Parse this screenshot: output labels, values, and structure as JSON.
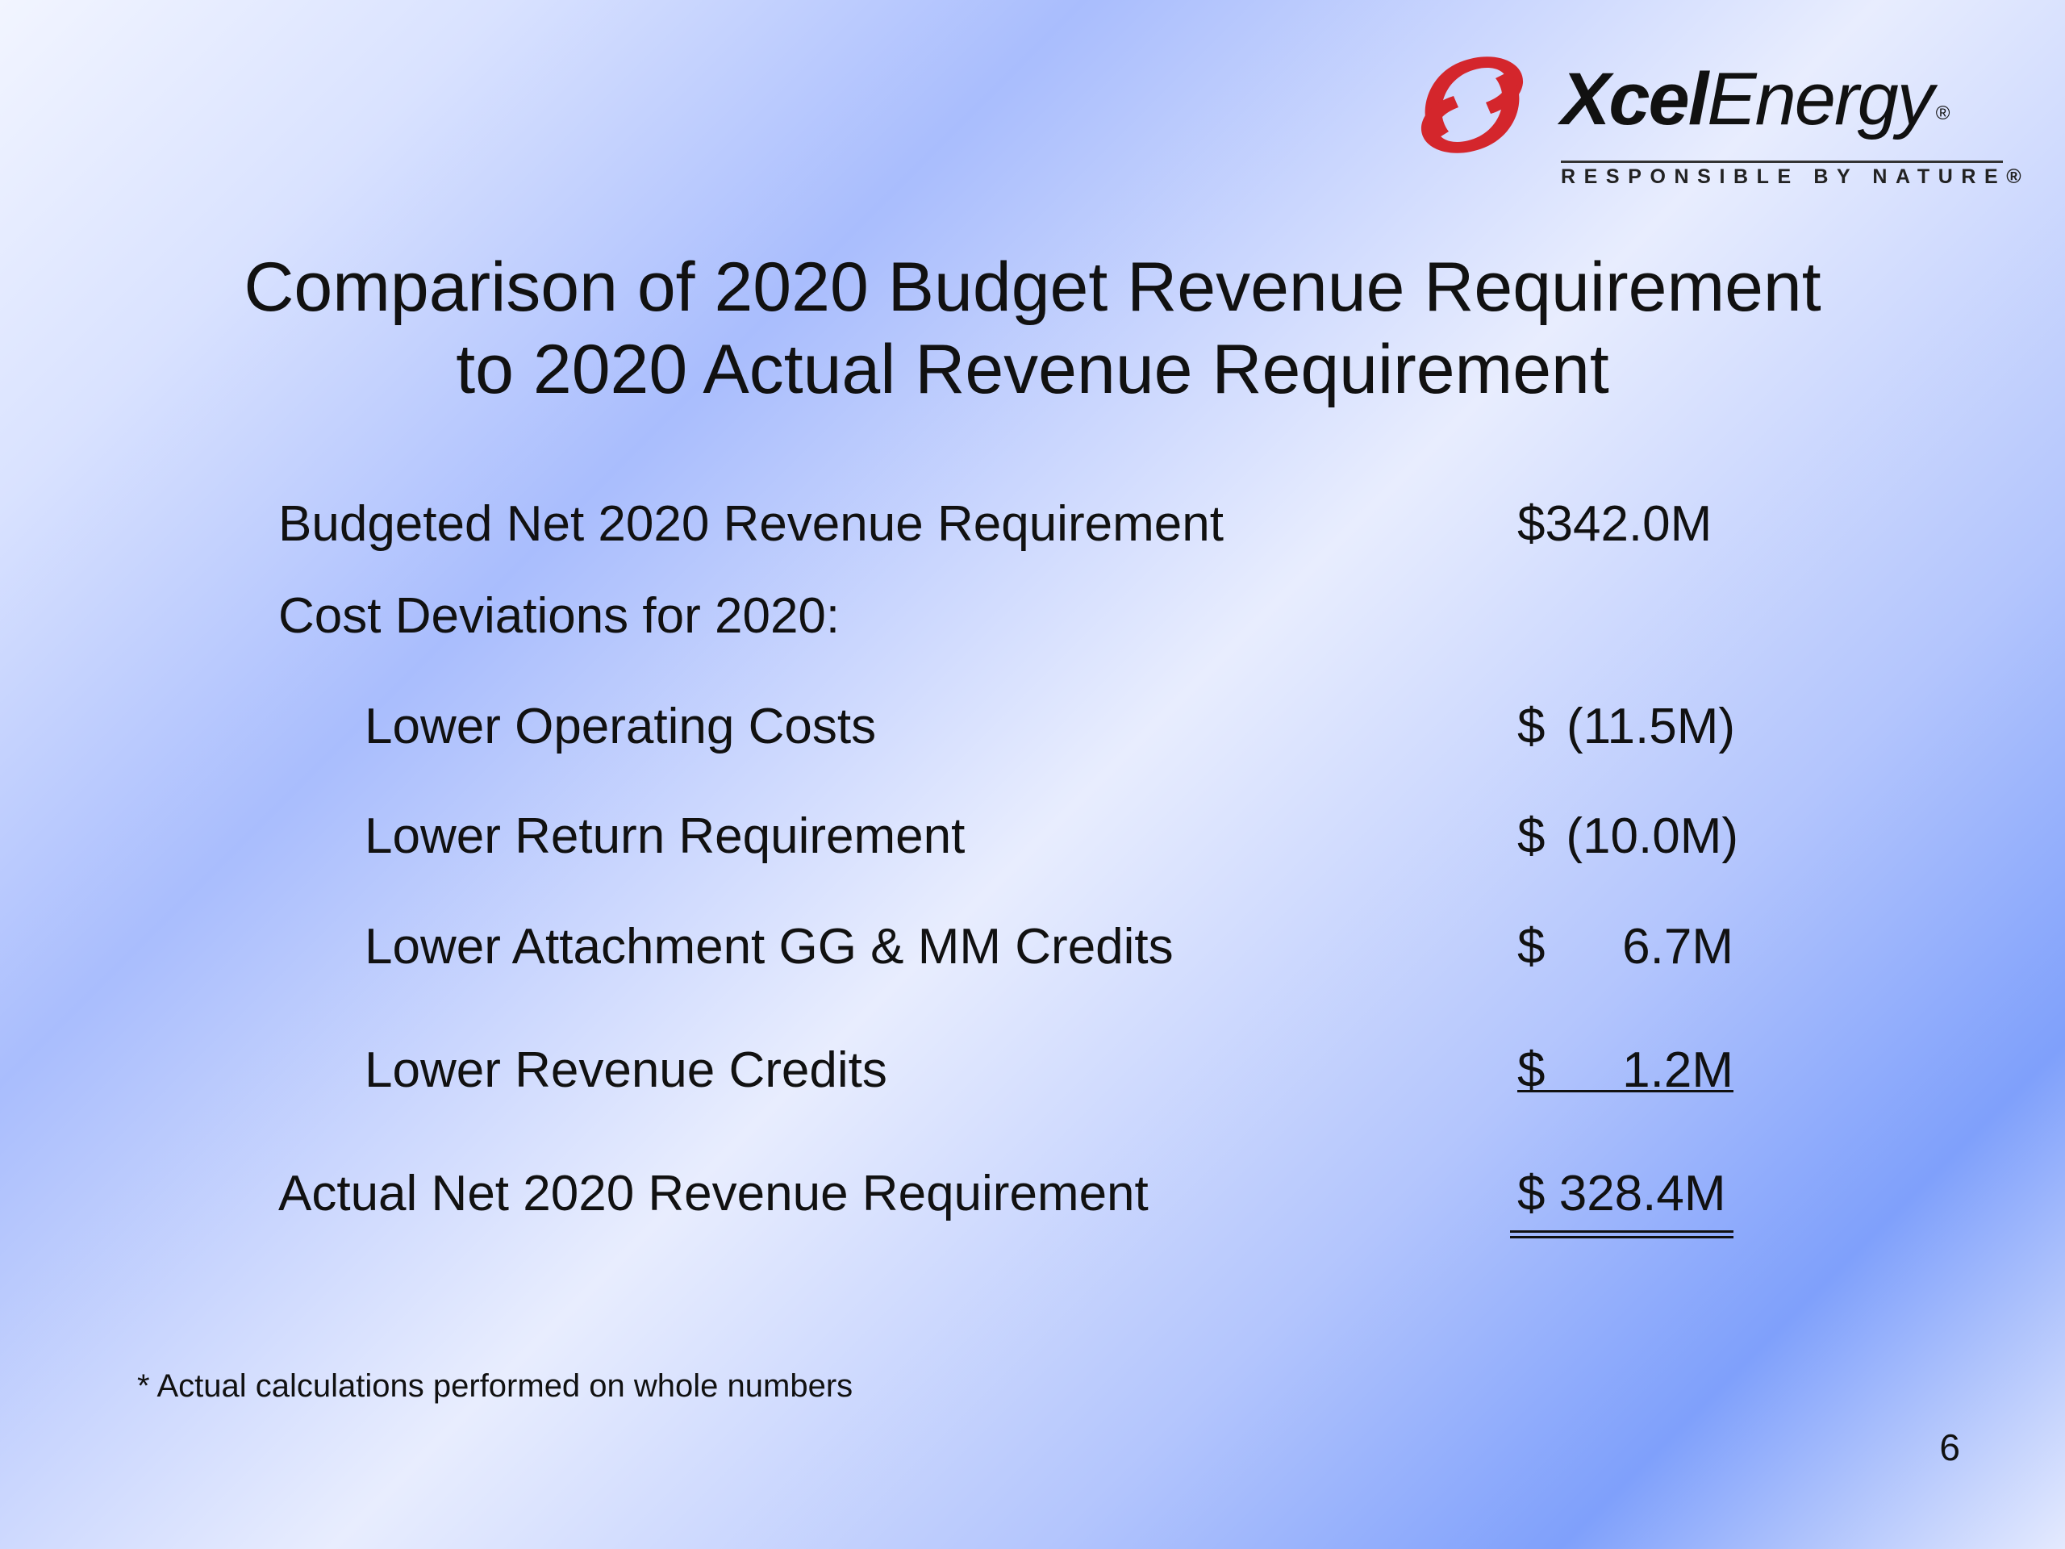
{
  "logo": {
    "brand_bold": "Xcel",
    "brand_regular": "Energy",
    "registered": "®",
    "tagline": "RESPONSIBLE BY NATURE®"
  },
  "slide": {
    "title_line1": "Comparison of 2020 Budget Revenue Requirement",
    "title_line2": "to 2020 Actual Revenue Requirement",
    "budgeted": {
      "label": "Budgeted Net 2020 Revenue Requirement",
      "amount": "$342.0M"
    },
    "deviations_heading": "Cost Deviations for 2020:",
    "deviations": [
      {
        "label": "Lower Operating Costs",
        "currency": "$",
        "value": "(11.5M)"
      },
      {
        "label": "Lower Return Requirement",
        "currency": "$",
        "value": "(10.0M)"
      },
      {
        "label": "Lower Attachment GG & MM Credits",
        "currency": "$",
        "value": "6.7M"
      },
      {
        "label": "Lower Revenue Credits",
        "currency": "$",
        "value": "1.2M"
      }
    ],
    "actual": {
      "label": "Actual Net 2020 Revenue Requirement",
      "amount": "$ 328.4M"
    },
    "footnote": "* Actual calculations performed on whole numbers",
    "page_number": "6"
  },
  "colors": {
    "logo_red": "#d4262c",
    "text": "#111111"
  }
}
